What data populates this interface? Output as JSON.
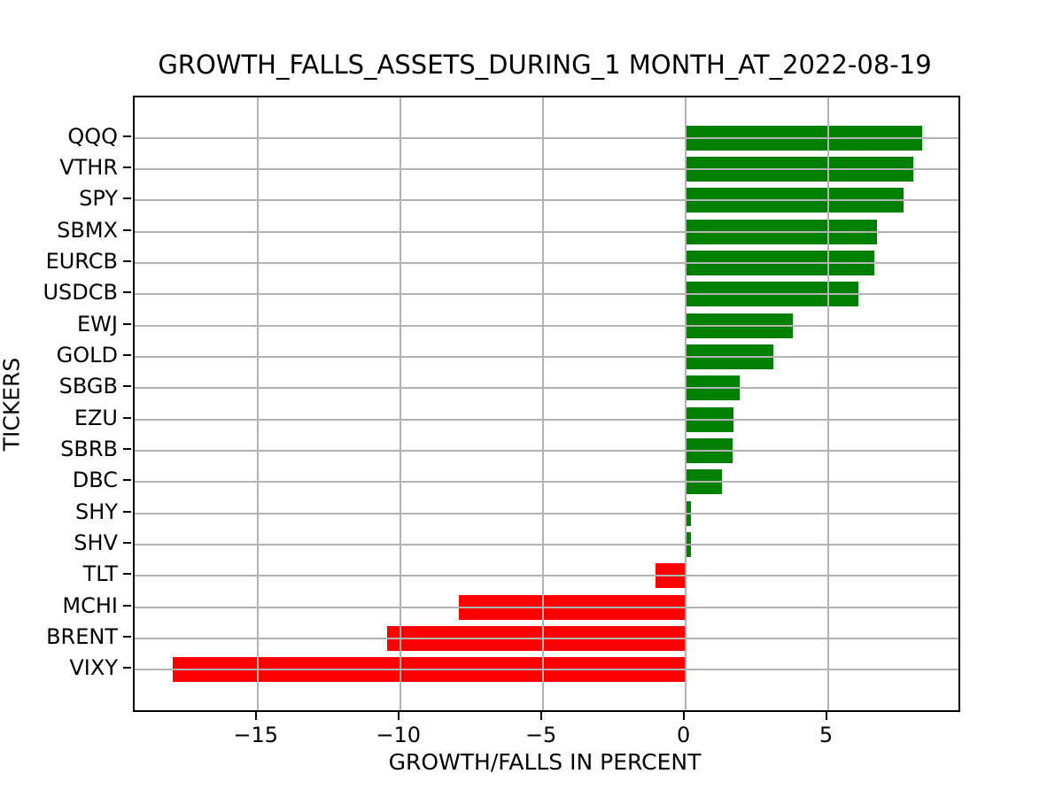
{
  "chart_data": {
    "type": "bar",
    "orientation": "horizontal",
    "title": "GROWTH_FALLS_ASSETS_DURING_1 MONTH_AT_2022-08-19",
    "xlabel": "GROWTH/FALLS IN PERCENT",
    "ylabel": "TICKERS",
    "categories": [
      "QQQ",
      "VTHR",
      "SPY",
      "SBMX",
      "EURCB",
      "USDCB",
      "EWJ",
      "GOLD",
      "SBGB",
      "EZU",
      "SBRB",
      "DBC",
      "SHY",
      "SHV",
      "TLT",
      "MCHI",
      "BRENT",
      "VIXY"
    ],
    "values": [
      8.3,
      8.0,
      7.65,
      6.73,
      6.62,
      6.07,
      3.78,
      3.1,
      1.92,
      1.7,
      1.67,
      1.3,
      0.21,
      0.19,
      -1.04,
      -7.95,
      -10.45,
      -17.97
    ],
    "xticks": [
      -15,
      -10,
      -5,
      0,
      5
    ],
    "xlim": [
      -19.31,
      9.58
    ],
    "grid": true,
    "legend": "none",
    "positive_color": "#008000",
    "negative_color": "#ff0000",
    "grid_color": "#b3b3b3",
    "spine_color": "#000000",
    "background_color": "#ffffff"
  }
}
